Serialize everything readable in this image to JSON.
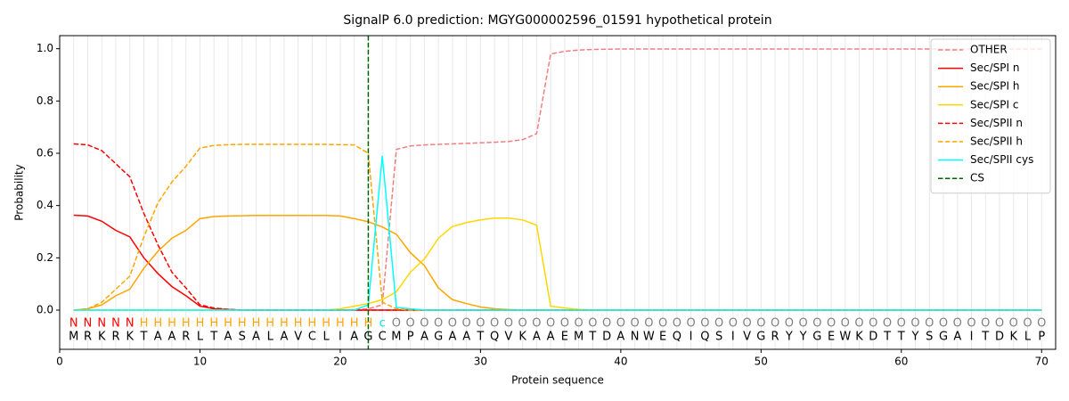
{
  "chart_data": {
    "type": "line",
    "title": "SignalP 6.0 prediction: MGYG000002596_01591 hypothetical protein",
    "xlabel": "Protein sequence",
    "ylabel": "Probability",
    "x": [
      1,
      2,
      3,
      4,
      5,
      6,
      7,
      8,
      9,
      10,
      11,
      12,
      13,
      14,
      15,
      16,
      17,
      18,
      19,
      20,
      21,
      22,
      23,
      24,
      25,
      26,
      27,
      28,
      29,
      30,
      31,
      32,
      33,
      34,
      35,
      36,
      37,
      38,
      39,
      40,
      41,
      42,
      43,
      44,
      45,
      46,
      47,
      48,
      49,
      50,
      51,
      52,
      53,
      54,
      55,
      56,
      57,
      58,
      59,
      60,
      61,
      62,
      63,
      64,
      65,
      66,
      67,
      68,
      69,
      70
    ],
    "sequence": [
      "M",
      "R",
      "K",
      "R",
      "K",
      "T",
      "A",
      "A",
      "R",
      "L",
      "T",
      "A",
      "S",
      "A",
      "L",
      "A",
      "V",
      "C",
      "L",
      "I",
      "A",
      "G",
      "C",
      "M",
      "P",
      "A",
      "G",
      "A",
      "A",
      "T",
      "Q",
      "V",
      "K",
      "A",
      "A",
      "E",
      "M",
      "T",
      "D",
      "A",
      "N",
      "W",
      "E",
      "Q",
      "I",
      "Q",
      "S",
      "I",
      "V",
      "G",
      "R",
      "Y",
      "Y",
      "G",
      "E",
      "W",
      "K",
      "D",
      "T",
      "T",
      "Y",
      "S",
      "G",
      "A",
      "I",
      "T",
      "D",
      "K",
      "L",
      "P"
    ],
    "region_labels": [
      "N",
      "N",
      "N",
      "N",
      "N",
      "H",
      "H",
      "H",
      "H",
      "H",
      "H",
      "H",
      "H",
      "H",
      "H",
      "H",
      "H",
      "H",
      "H",
      "H",
      "H",
      "H",
      "c",
      "O",
      "O",
      "O",
      "O",
      "O",
      "O",
      "O",
      "O",
      "O",
      "O",
      "O",
      "O",
      "O",
      "O",
      "O",
      "O",
      "O",
      "O",
      "O",
      "O",
      "O",
      "O",
      "O",
      "O",
      "O",
      "O",
      "O",
      "O",
      "O",
      "O",
      "O",
      "O",
      "O",
      "O",
      "O",
      "O",
      "O",
      "O",
      "O",
      "O",
      "O",
      "O",
      "O",
      "O",
      "O",
      "O",
      "O"
    ],
    "region_label_colors": {
      "N": "#ff0000",
      "H": "#ffa500",
      "c": "#00e5e5",
      "O": "#808080"
    },
    "xlim": [
      0,
      71
    ],
    "ylim": [
      -0.15,
      1.05
    ],
    "xticks": [
      0,
      10,
      20,
      30,
      40,
      50,
      60,
      70
    ],
    "yticks": [
      {
        "value": 0,
        "label": "0.0"
      },
      {
        "value": 0.2,
        "label": "0.2"
      },
      {
        "value": 0.4,
        "label": "0.4"
      },
      {
        "value": 0.6,
        "label": "0.6"
      },
      {
        "value": 0.8,
        "label": "0.8"
      },
      {
        "value": 1,
        "label": "1.0"
      }
    ],
    "grid": true,
    "legend": "upper right",
    "series": [
      {
        "name": "OTHER",
        "color": "#f08080",
        "dash": true,
        "values": [
          0,
          0,
          0,
          0,
          0,
          0,
          0,
          0,
          0,
          0,
          0,
          0,
          0,
          0,
          0,
          0,
          0,
          0,
          0,
          0,
          0.002,
          0.005,
          0.02,
          0.615,
          0.628,
          0.632,
          0.634,
          0.636,
          0.638,
          0.64,
          0.642,
          0.645,
          0.652,
          0.675,
          0.98,
          0.99,
          0.995,
          0.997,
          0.998,
          0.999,
          0.999,
          0.999,
          0.999,
          0.999,
          0.999,
          0.999,
          0.999,
          0.999,
          0.999,
          0.999,
          0.999,
          0.999,
          0.999,
          0.999,
          0.999,
          0.999,
          0.999,
          0.999,
          0.999,
          0.999,
          0.999,
          0.999,
          0.999,
          0.999,
          0.999,
          0.999,
          0.999,
          0.999,
          0.999,
          0.999
        ]
      },
      {
        "name": "Sec/SPI n",
        "color": "#ff0000",
        "dash": false,
        "values": [
          0.363,
          0.36,
          0.34,
          0.305,
          0.28,
          0.2,
          0.14,
          0.09,
          0.055,
          0.015,
          0.005,
          0.002,
          0,
          0,
          0,
          0,
          0,
          0,
          0,
          0,
          0,
          0,
          0,
          0,
          0,
          0,
          0,
          0,
          0,
          0,
          0,
          0,
          0,
          0,
          0,
          0,
          0,
          0,
          0,
          0,
          0,
          0,
          0,
          0,
          0,
          0,
          0,
          0,
          0,
          0,
          0,
          0,
          0,
          0,
          0,
          0,
          0,
          0,
          0,
          0,
          0,
          0,
          0,
          0,
          0,
          0,
          0,
          0,
          0,
          0
        ]
      },
      {
        "name": "Sec/SPI h",
        "color": "#ffa500",
        "dash": false,
        "values": [
          0,
          0.005,
          0.02,
          0.055,
          0.08,
          0.16,
          0.225,
          0.275,
          0.305,
          0.35,
          0.358,
          0.36,
          0.361,
          0.362,
          0.362,
          0.362,
          0.362,
          0.362,
          0.362,
          0.36,
          0.35,
          0.338,
          0.318,
          0.29,
          0.22,
          0.17,
          0.085,
          0.04,
          0.025,
          0.012,
          0.005,
          0.002,
          0,
          0,
          0,
          0,
          0,
          0,
          0,
          0,
          0,
          0,
          0,
          0,
          0,
          0,
          0,
          0,
          0,
          0,
          0,
          0,
          0,
          0,
          0,
          0,
          0,
          0,
          0,
          0,
          0,
          0,
          0,
          0,
          0,
          0,
          0,
          0,
          0,
          0
        ]
      },
      {
        "name": "Sec/SPI c",
        "color": "#ffd700",
        "dash": false,
        "values": [
          0,
          0,
          0,
          0,
          0,
          0,
          0,
          0,
          0,
          0,
          0,
          0,
          0,
          0,
          0,
          0,
          0,
          0,
          0,
          0.005,
          0.015,
          0.025,
          0.04,
          0.07,
          0.145,
          0.195,
          0.275,
          0.32,
          0.335,
          0.345,
          0.352,
          0.352,
          0.345,
          0.325,
          0.015,
          0.008,
          0.003,
          0,
          0,
          0,
          0,
          0,
          0,
          0,
          0,
          0,
          0,
          0,
          0,
          0,
          0,
          0,
          0,
          0,
          0,
          0,
          0,
          0,
          0,
          0,
          0,
          0,
          0,
          0,
          0,
          0,
          0,
          0,
          0,
          0
        ]
      },
      {
        "name": "Sec/SPII n",
        "color": "#ff0000",
        "dash": true,
        "values": [
          0.636,
          0.632,
          0.61,
          0.56,
          0.51,
          0.37,
          0.25,
          0.145,
          0.085,
          0.02,
          0.008,
          0.003,
          0,
          0,
          0,
          0,
          0,
          0,
          0,
          0,
          0,
          0,
          0,
          0,
          0,
          0,
          0,
          0,
          0,
          0,
          0,
          0,
          0,
          0,
          0,
          0,
          0,
          0,
          0,
          0,
          0,
          0,
          0,
          0,
          0,
          0,
          0,
          0,
          0,
          0,
          0,
          0,
          0,
          0,
          0,
          0,
          0,
          0,
          0,
          0,
          0,
          0,
          0,
          0,
          0,
          0,
          0,
          0,
          0,
          0
        ]
      },
      {
        "name": "Sec/SPII h",
        "color": "#ffa500",
        "dash": true,
        "values": [
          0,
          0.005,
          0.03,
          0.08,
          0.13,
          0.28,
          0.41,
          0.49,
          0.55,
          0.62,
          0.63,
          0.633,
          0.634,
          0.634,
          0.634,
          0.634,
          0.634,
          0.634,
          0.634,
          0.633,
          0.632,
          0.6,
          0.03,
          0.005,
          0,
          0,
          0,
          0,
          0,
          0,
          0,
          0,
          0,
          0,
          0,
          0,
          0,
          0,
          0,
          0,
          0,
          0,
          0,
          0,
          0,
          0,
          0,
          0,
          0,
          0,
          0,
          0,
          0,
          0,
          0,
          0,
          0,
          0,
          0,
          0,
          0,
          0,
          0,
          0,
          0,
          0,
          0,
          0,
          0,
          0
        ]
      },
      {
        "name": "Sec/SPII cys",
        "color": "#00ffff",
        "dash": false,
        "values": [
          0,
          0,
          0,
          0,
          0,
          0,
          0,
          0,
          0,
          0,
          0,
          0,
          0,
          0,
          0,
          0,
          0,
          0,
          0,
          0,
          0,
          0.02,
          0.59,
          0.01,
          0.005,
          0,
          0,
          0,
          0,
          0,
          0,
          0,
          0,
          0,
          0,
          0,
          0,
          0,
          0,
          0,
          0,
          0,
          0,
          0,
          0,
          0,
          0,
          0,
          0,
          0,
          0,
          0,
          0,
          0,
          0,
          0,
          0,
          0,
          0,
          0,
          0,
          0,
          0,
          0,
          0,
          0,
          0,
          0,
          0,
          0
        ]
      }
    ],
    "cs": {
      "name": "CS",
      "x": 22,
      "color": "#006400"
    }
  }
}
